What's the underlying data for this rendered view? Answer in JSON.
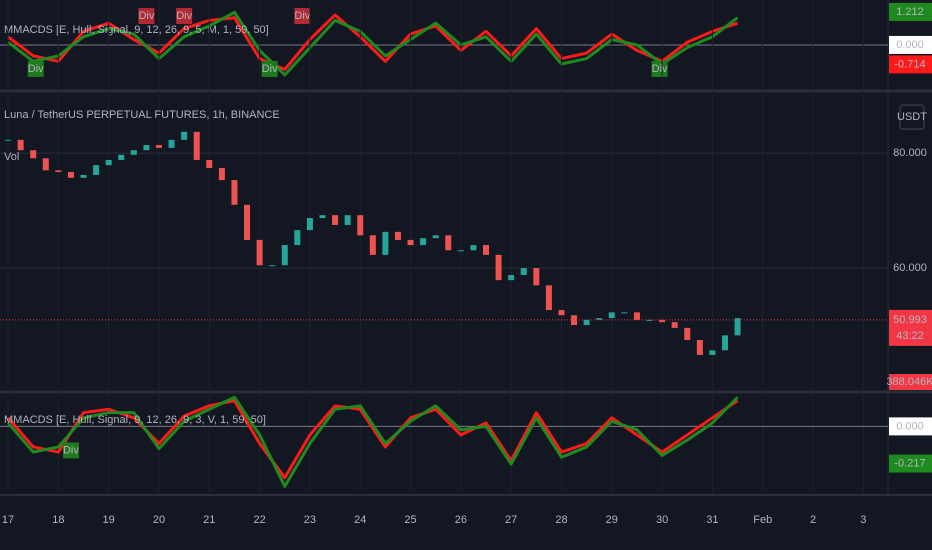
{
  "chart_data": [
    {
      "type": "line",
      "title": "MMACDS [E, Hull, Signal, 9, 12, 26, 9, 5, M, 1, 59, 50]",
      "x": [
        17,
        17.5,
        18,
        18.5,
        19,
        19.5,
        20,
        20.5,
        21,
        21.5,
        22,
        22.5,
        23,
        23.5,
        24,
        24.5,
        25,
        25.5,
        26,
        26.5,
        27,
        27.5,
        28,
        28.5,
        29,
        29.5,
        30,
        30.5,
        31,
        31.5
      ],
      "xlim": [
        16.84,
        34.49
      ],
      "ylim": [
        -1.58,
        1.65
      ],
      "series": [
        {
          "color": "#ff1a1a",
          "values": [
            0.3,
            -0.4,
            -0.6,
            0.5,
            0.8,
            0.2,
            -0.3,
            0.6,
            0.9,
            1.0,
            -0.5,
            -0.9,
            0.2,
            1.1,
            0.3,
            -0.6,
            0.4,
            0.7,
            -0.2,
            0.5,
            -0.4,
            0.6,
            -0.5,
            -0.3,
            0.4,
            -0.2,
            -0.6,
            0.1,
            0.5,
            0.8
          ]
        },
        {
          "color": "#1f8a1f",
          "values": [
            0.1,
            -0.6,
            -0.4,
            0.3,
            0.6,
            0.4,
            -0.5,
            0.3,
            0.7,
            1.2,
            -0.2,
            -1.1,
            -0.1,
            0.9,
            0.5,
            -0.4,
            0.2,
            0.8,
            0.0,
            0.3,
            -0.6,
            0.4,
            -0.7,
            -0.5,
            0.2,
            0.0,
            -0.7,
            -0.1,
            0.3,
            1.0
          ]
        }
      ],
      "value_badges": [
        {
          "value": 1.212,
          "label": "1.212",
          "color": "#1f8a1f"
        },
        {
          "value": 0,
          "label": "0.000",
          "color": "#ffffff"
        },
        {
          "value": -0.714,
          "label": "-0.714",
          "color": "#ff1a1a"
        }
      ],
      "annotations": [
        {
          "x": 17.55,
          "text": "Div",
          "color": "#1f7a1f",
          "position": "below"
        },
        {
          "x": 19.75,
          "text": "Div",
          "color": "#b22833",
          "position": "above"
        },
        {
          "x": 20.5,
          "text": "Div",
          "color": "#b22833",
          "position": "above"
        },
        {
          "x": 22.2,
          "text": "Div",
          "color": "#1f7a1f",
          "position": "below"
        },
        {
          "x": 22.85,
          "text": "Div",
          "color": "#b22833",
          "position": "above"
        },
        {
          "x": 29.95,
          "text": "Div",
          "color": "#1f7a1f",
          "position": "below"
        }
      ]
    },
    {
      "type": "candlestick",
      "title": "Luna / TetherUS PERPETUAL FUTURES, 1h, BINANCE",
      "subtitle": "Vol",
      "unit": "USDT",
      "x": [
        17,
        17.25,
        17.5,
        17.75,
        18,
        18.25,
        18.5,
        18.75,
        19,
        19.25,
        19.5,
        19.75,
        20,
        20.25,
        20.5,
        20.75,
        21,
        21.25,
        21.5,
        21.75,
        22,
        22.25,
        22.5,
        22.75,
        23,
        23.25,
        23.5,
        23.75,
        24,
        24.25,
        24.5,
        24.75,
        25,
        25.25,
        25.5,
        25.75,
        26,
        26.25,
        26.5,
        26.75,
        27,
        27.25,
        27.5,
        27.75,
        28,
        28.25,
        28.5,
        28.75,
        29,
        29.25,
        29.5,
        29.75,
        30,
        30.25,
        30.5,
        30.75,
        31,
        31.25,
        31.5
      ],
      "values": [
        82.3,
        80.5,
        79.1,
        77,
        76.7,
        75.7,
        76.2,
        77.9,
        78.8,
        79.7,
        80.5,
        81.4,
        80.9,
        82.3,
        83.7,
        78.8,
        77.4,
        75.3,
        71,
        64.9,
        60.5,
        60.5,
        64,
        66.6,
        68.7,
        69.2,
        67.5,
        69.2,
        65.7,
        62.3,
        66.3,
        64.9,
        64,
        65.2,
        65.7,
        63.1,
        63.1,
        64,
        62.3,
        57.9,
        58.8,
        60,
        57,
        52.7,
        51.8,
        50.1,
        51,
        51.3,
        52.3,
        52.3,
        51,
        51,
        50.6,
        49.6,
        47.5,
        44.9,
        45.7,
        48.3,
        51.3
      ],
      "up_color": "#26a69a",
      "down_color": "#ef5350",
      "xlim": [
        16.84,
        34.49
      ],
      "ylim": [
        38.8,
        90.1
      ],
      "yticks": [
        {
          "value": 60,
          "label": "60.000"
        },
        {
          "value": 80,
          "label": "80.000"
        }
      ],
      "xticks": [
        17,
        18,
        19,
        20,
        21,
        22,
        23,
        24,
        25,
        26,
        27,
        28,
        29,
        30,
        31,
        {
          "value": 32,
          "label": "Feb"
        },
        {
          "value": 33,
          "label": "2"
        },
        {
          "value": 34,
          "label": "3"
        }
      ],
      "grid": true,
      "price_badge": {
        "value": 50.993,
        "label": "50.993",
        "countdown": "43:22",
        "color": "#f23645"
      },
      "volume_badge": "388.046K"
    },
    {
      "type": "line",
      "title": "MMACDS [E, Hull, Signal, 9, 12, 26, 9, 3, V, 1, 59, 50]",
      "x": [
        17,
        17.5,
        18,
        18.5,
        19,
        19.5,
        20,
        20.5,
        21,
        21.5,
        22,
        22.5,
        23,
        23.5,
        24,
        24.5,
        25,
        25.5,
        26,
        26.5,
        27,
        27.5,
        28,
        28.5,
        29,
        29.5,
        30,
        30.5,
        31,
        31.5
      ],
      "xlim": [
        16.84,
        34.49
      ],
      "ylim": [
        -0.383,
        0.189
      ],
      "series": [
        {
          "color": "#ff1a1a",
          "values": [
            0.05,
            -0.12,
            -0.15,
            0.08,
            0.1,
            0.05,
            -0.1,
            0.06,
            0.12,
            0.15,
            -0.1,
            -0.3,
            -0.05,
            0.12,
            0.1,
            -0.12,
            0.05,
            0.1,
            -0.05,
            0.02,
            -0.2,
            0.08,
            -0.15,
            -0.1,
            0.05,
            -0.05,
            -0.15,
            -0.05,
            0.05,
            0.15
          ]
        },
        {
          "color": "#1f8a1f",
          "values": [
            0.02,
            -0.15,
            -0.12,
            0.05,
            0.08,
            0.08,
            -0.13,
            0.03,
            0.1,
            0.17,
            -0.05,
            -0.35,
            -0.1,
            0.1,
            0.12,
            -0.1,
            0.03,
            0.12,
            -0.02,
            0.0,
            -0.22,
            0.05,
            -0.18,
            -0.12,
            0.03,
            -0.02,
            -0.17,
            -0.08,
            0.02,
            0.17
          ]
        }
      ],
      "value_badges": [
        {
          "value": 0,
          "label": "0.000",
          "color": "#ffffff"
        },
        {
          "value": -0.217,
          "label": "-0.217",
          "color": "#1f8a1f"
        }
      ],
      "annotations": [
        {
          "x": 18.25,
          "text": "Div",
          "color": "#1f7a1f",
          "position": "below"
        }
      ]
    }
  ]
}
